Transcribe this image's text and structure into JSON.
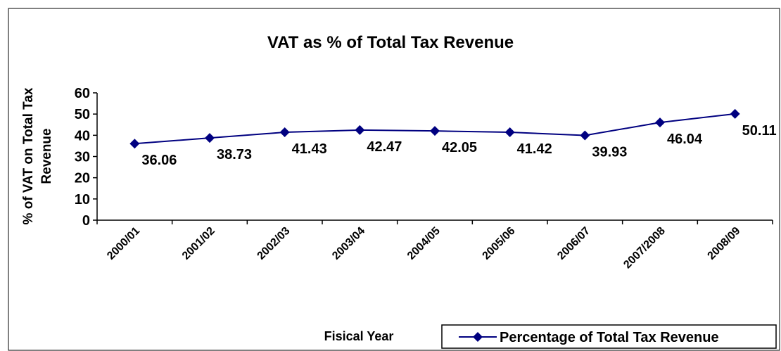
{
  "chart_data": {
    "type": "line",
    "title": "VAT as % of Total Tax Revenue",
    "y_label": [
      "% of VAT on Total Tax",
      "Revenue"
    ],
    "x_label": "Fisical Year",
    "categories": [
      "2000/01",
      "2001/02",
      "2002/03",
      "2003/04",
      "2004/05",
      "2005/06",
      "2006/07",
      "2007/2008",
      "2008/09"
    ],
    "series": [
      {
        "name": "Percentage of Total Tax Revenue",
        "color": "#000080",
        "values": [
          36.06,
          38.73,
          41.43,
          42.47,
          42.05,
          41.42,
          39.93,
          46.04,
          50.11
        ]
      }
    ],
    "ylim": [
      0,
      60
    ],
    "yticks": [
      0,
      10,
      20,
      30,
      40,
      50,
      60
    ],
    "grid": false,
    "legend": "bottom-right"
  }
}
